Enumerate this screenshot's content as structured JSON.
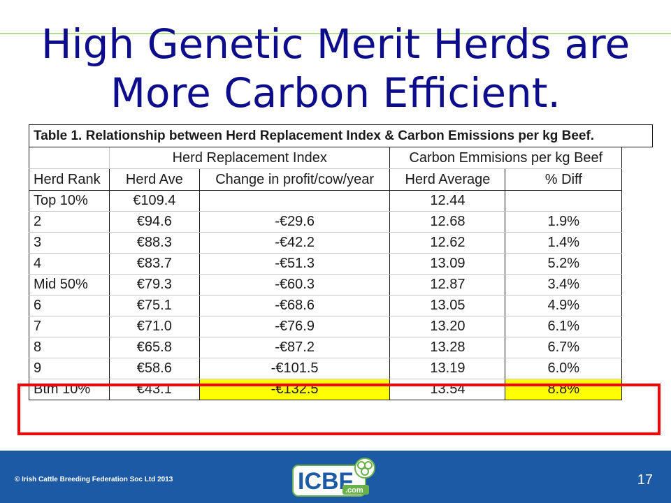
{
  "slide": {
    "title_line1": "High Genetic Merit Herds are",
    "title_line2": "More Carbon Efficient.",
    "page_number": "17"
  },
  "table": {
    "caption": "Table 1. Relationship between Herd Replacement Index & Carbon Emissions per kg Beef.",
    "group_headers": [
      "Herd Replacement Index",
      "Carbon Emmisions per kg Beef"
    ],
    "columns": [
      "Herd Rank",
      "Herd Ave",
      "Change in profit/cow/year",
      "Herd Average",
      "% Diff"
    ],
    "rows": [
      [
        "Top 10%",
        "€109.4",
        "",
        "12.44",
        ""
      ],
      [
        "2",
        "€94.6",
        "-€29.6",
        "12.68",
        "1.9%"
      ],
      [
        "3",
        "€88.3",
        "-€42.2",
        "12.62",
        "1.4%"
      ],
      [
        "4",
        "€83.7",
        "-€51.3",
        "13.09",
        "5.2%"
      ],
      [
        "Mid 50%",
        "€79.3",
        "-€60.3",
        "12.87",
        "3.4%"
      ],
      [
        "6",
        "€75.1",
        "-€68.6",
        "13.05",
        "4.9%"
      ],
      [
        "7",
        "€71.0",
        "-€76.9",
        "13.20",
        "6.1%"
      ],
      [
        "8",
        "€65.8",
        "-€87.2",
        "13.28",
        "6.7%"
      ],
      [
        "9",
        "€58.6",
        "-€101.5",
        "13.19",
        "6.0%"
      ],
      [
        "Btm 10%",
        "€43.1",
        "-€132.5",
        "13.54",
        "8.8%"
      ]
    ],
    "highlight_color": "#ffff00",
    "box_color": "#ff0000"
  },
  "footer": {
    "copyright": "© Irish Cattle Breeding Federation Soc Ltd 2013",
    "logo_main": "ICBF",
    "logo_sub": ".com",
    "background": "#1c5aa6"
  }
}
